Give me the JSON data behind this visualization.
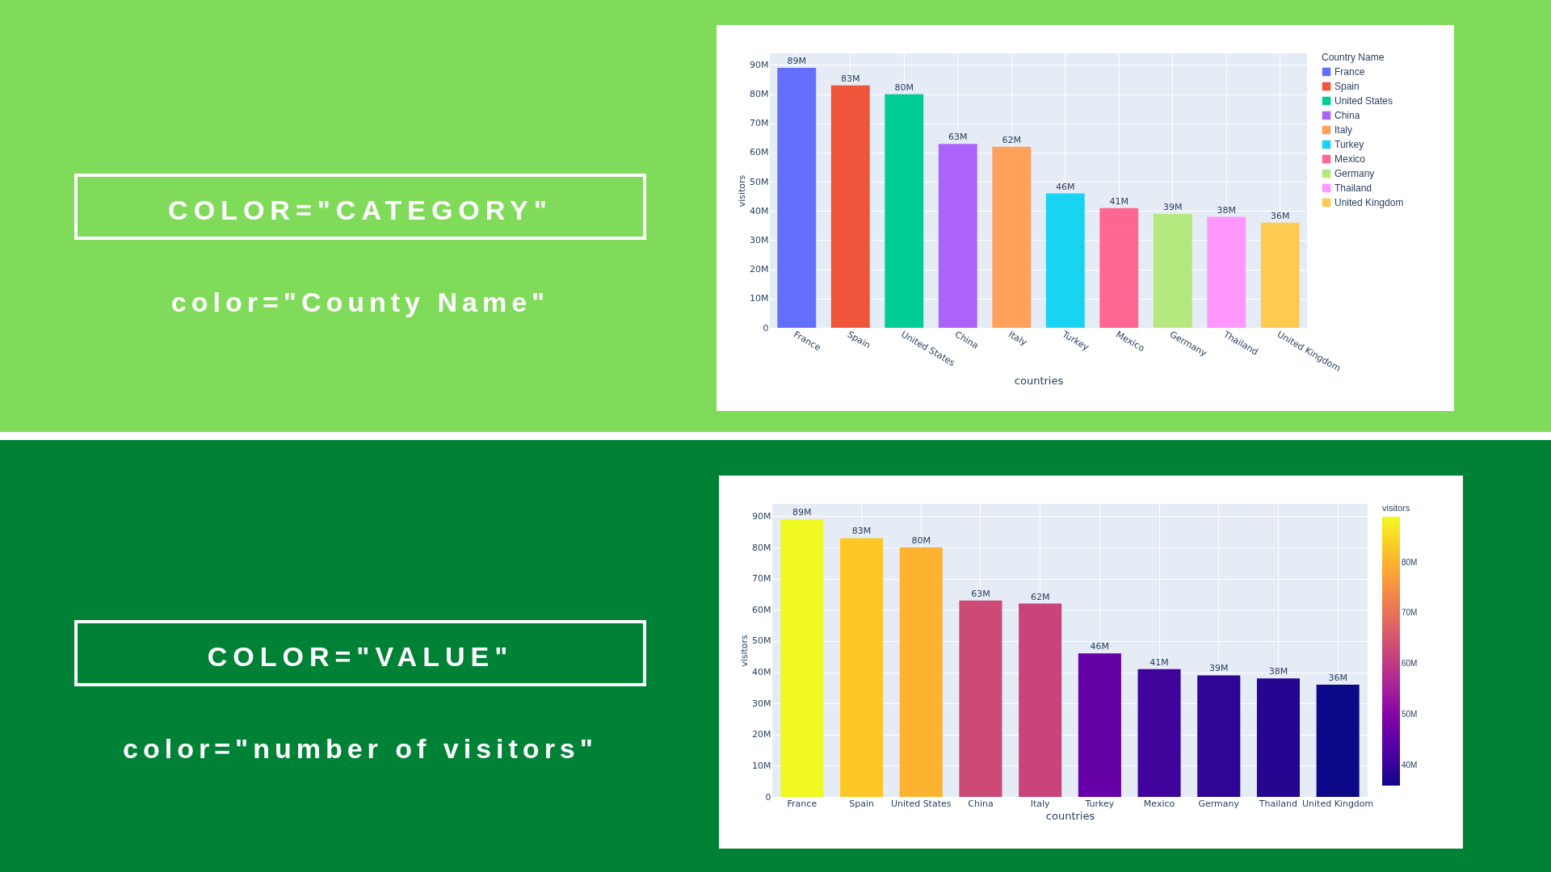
{
  "chart_data": [
    {
      "type": "other",
      "title": "COLOR=\"CATEGORY\"",
      "subtitle": "color=\"County Name\""
    },
    {
      "type": "bar",
      "categories": [
        "France",
        "Spain",
        "United States",
        "China",
        "Italy",
        "Turkey",
        "Mexico",
        "Germany",
        "Thailand",
        "United Kingdom"
      ],
      "series": [
        {
          "name": "France",
          "color": "#636efa",
          "values": [
            89000000,
            null,
            null,
            null,
            null,
            null,
            null,
            null,
            null,
            null
          ],
          "value_labels": [
            "89M",
            null,
            null,
            null,
            null,
            null,
            null,
            null,
            null,
            null
          ]
        },
        {
          "name": "Spain",
          "color": "#ef553b",
          "values": [
            null,
            83000000,
            null,
            null,
            null,
            null,
            null,
            null,
            null,
            null
          ],
          "value_labels": [
            null,
            "83M",
            null,
            null,
            null,
            null,
            null,
            null,
            null,
            null
          ]
        },
        {
          "name": "United States",
          "color": "#00cc96",
          "values": [
            null,
            null,
            80000000,
            null,
            null,
            null,
            null,
            null,
            null,
            null
          ],
          "value_labels": [
            null,
            null,
            "80M",
            null,
            null,
            null,
            null,
            null,
            null,
            null
          ]
        },
        {
          "name": "China",
          "color": "#ab63fa",
          "values": [
            null,
            null,
            null,
            63000000,
            null,
            null,
            null,
            null,
            null,
            null
          ],
          "value_labels": [
            null,
            null,
            null,
            "63M",
            null,
            null,
            null,
            null,
            null,
            null
          ]
        },
        {
          "name": "Italy",
          "color": "#ffa15a",
          "values": [
            null,
            null,
            null,
            null,
            62000000,
            null,
            null,
            null,
            null,
            null
          ],
          "value_labels": [
            null,
            null,
            null,
            null,
            "62M",
            null,
            null,
            null,
            null,
            null
          ]
        },
        {
          "name": "Turkey",
          "color": "#19d3f3",
          "values": [
            null,
            null,
            null,
            null,
            null,
            46000000,
            null,
            null,
            null,
            null
          ],
          "value_labels": [
            null,
            null,
            null,
            null,
            null,
            "46M",
            null,
            null,
            null,
            null
          ]
        },
        {
          "name": "Mexico",
          "color": "#ff6692",
          "values": [
            null,
            null,
            null,
            null,
            null,
            null,
            41000000,
            null,
            null,
            null
          ],
          "value_labels": [
            null,
            null,
            null,
            null,
            null,
            null,
            "41M",
            null,
            null,
            null
          ]
        },
        {
          "name": "Germany",
          "color": "#b6e880",
          "values": [
            null,
            null,
            null,
            null,
            null,
            null,
            null,
            39000000,
            null,
            null
          ],
          "value_labels": [
            null,
            null,
            null,
            null,
            null,
            null,
            null,
            "39M",
            null,
            null
          ]
        },
        {
          "name": "Thailand",
          "color": "#ff97ff",
          "values": [
            null,
            null,
            null,
            null,
            null,
            null,
            null,
            null,
            38000000,
            null
          ],
          "value_labels": [
            null,
            null,
            null,
            null,
            null,
            null,
            null,
            null,
            "38M",
            null
          ]
        },
        {
          "name": "United Kingdom",
          "color": "#fecb52",
          "values": [
            null,
            null,
            null,
            null,
            null,
            null,
            null,
            null,
            null,
            36000000
          ],
          "value_labels": [
            null,
            null,
            null,
            null,
            null,
            null,
            null,
            null,
            null,
            "36M"
          ]
        }
      ],
      "xlabel": "countries",
      "ylabel": "visitors",
      "legend_title": "Country Name",
      "legend": "right",
      "grid": true,
      "ylim": [
        0,
        94000000
      ],
      "yticks": [
        0,
        {
          "value": 10000000,
          "label": "10M"
        },
        {
          "value": 20000000,
          "label": "20M"
        },
        {
          "value": 30000000,
          "label": "30M"
        },
        {
          "value": 40000000,
          "label": "40M"
        },
        {
          "value": 50000000,
          "label": "50M"
        },
        {
          "value": 60000000,
          "label": "60M"
        },
        {
          "value": 70000000,
          "label": "70M"
        },
        {
          "value": 80000000,
          "label": "80M"
        },
        {
          "value": 90000000,
          "label": "90M"
        }
      ]
    },
    {
      "type": "other",
      "title": "COLOR=\"VALUE\"",
      "subtitle": "color=\"number of visitors\""
    },
    {
      "type": "bar",
      "categories": [
        "France",
        "Spain",
        "United States",
        "China",
        "Italy",
        "Turkey",
        "Mexico",
        "Germany",
        "Thailand",
        "United Kingdom"
      ],
      "values": [
        89000000,
        83000000,
        80000000,
        63000000,
        62000000,
        46000000,
        41000000,
        39000000,
        38000000,
        36000000
      ],
      "value_labels": [
        "89M",
        "83M",
        "80M",
        "63M",
        "62M",
        "46M",
        "41M",
        "39M",
        "38M",
        "36M"
      ],
      "xlabel": "countries",
      "ylabel": "visitors",
      "clabel": "visitors",
      "clim": [
        36000000,
        89000000
      ],
      "cticks": [
        {
          "value": 40000000,
          "label": "40M"
        },
        {
          "value": 50000000,
          "label": "50M"
        },
        {
          "value": 60000000,
          "label": "60M"
        },
        {
          "value": 70000000,
          "label": "70M"
        },
        {
          "value": 80000000,
          "label": "80M"
        }
      ],
      "grid": true,
      "ylim": [
        0,
        94000000
      ],
      "yticks": [
        0,
        {
          "value": 10000000,
          "label": "10M"
        },
        {
          "value": 20000000,
          "label": "20M"
        },
        {
          "value": 30000000,
          "label": "30M"
        },
        {
          "value": 40000000,
          "label": "40M"
        },
        {
          "value": 50000000,
          "label": "50M"
        },
        {
          "value": 60000000,
          "label": "60M"
        },
        {
          "value": 70000000,
          "label": "70M"
        },
        {
          "value": 80000000,
          "label": "80M"
        },
        {
          "value": 90000000,
          "label": "90M"
        }
      ]
    }
  ]
}
